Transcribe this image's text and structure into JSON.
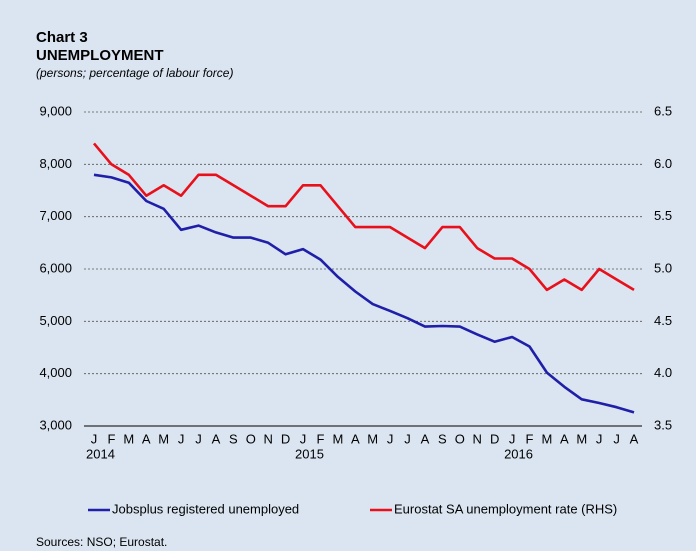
{
  "chart_data": {
    "type": "line",
    "title": "Chart 3",
    "subtitle": "UNEMPLOYMENT",
    "units_note": "(persons; percentage of labour force)",
    "source": "Sources: NSO; Eurostat.",
    "categories": [
      "J",
      "F",
      "M",
      "A",
      "M",
      "J",
      "J",
      "A",
      "S",
      "O",
      "N",
      "D",
      "J",
      "F",
      "M",
      "A",
      "M",
      "J",
      "J",
      "A",
      "S",
      "O",
      "N",
      "D",
      "J",
      "F",
      "M",
      "A",
      "M",
      "J",
      "J",
      "A"
    ],
    "years": [
      "2014",
      null,
      null,
      null,
      null,
      null,
      null,
      null,
      null,
      null,
      null,
      null,
      "2015",
      null,
      null,
      null,
      null,
      null,
      null,
      null,
      null,
      null,
      null,
      null,
      "2016",
      null,
      null,
      null,
      null,
      null,
      null,
      null
    ],
    "series": [
      {
        "name": "Jobsplus registered unemployed",
        "color": "#1f1fa8",
        "axis": "y",
        "values": [
          7800,
          7750,
          7650,
          7300,
          7150,
          6750,
          6830,
          6700,
          6600,
          6600,
          6500,
          6280,
          6380,
          6180,
          5850,
          5570,
          5330,
          5200,
          5060,
          4900,
          4910,
          4900,
          4750,
          4610,
          4700,
          4520,
          4020,
          3750,
          3510,
          3440,
          3360,
          3260
        ]
      },
      {
        "name": "Eurostat SA unemployment rate (RHS)",
        "color": "#e8101a",
        "axis": "y2",
        "values": [
          6.2,
          6.0,
          5.9,
          5.7,
          5.8,
          5.7,
          5.9,
          5.9,
          5.8,
          5.7,
          5.6,
          5.6,
          5.8,
          5.8,
          5.6,
          5.4,
          5.4,
          5.4,
          5.3,
          5.2,
          5.4,
          5.4,
          5.2,
          5.1,
          5.1,
          5.0,
          4.8,
          4.9,
          4.8,
          5.0,
          4.9,
          4.8
        ]
      }
    ],
    "ylim": [
      3000,
      9000
    ],
    "yticks": [
      {
        "value": 3000,
        "label": "3,000"
      },
      {
        "value": 4000,
        "label": "4,000"
      },
      {
        "value": 5000,
        "label": "5,000"
      },
      {
        "value": 6000,
        "label": "6,000"
      },
      {
        "value": 7000,
        "label": "7,000"
      },
      {
        "value": 8000,
        "label": "8,000"
      },
      {
        "value": 9000,
        "label": "9,000"
      }
    ],
    "y2lim": [
      3.5,
      6.5
    ],
    "y2ticks": [
      3.5,
      {
        "value": 4,
        "label": "4.0"
      },
      4.5,
      {
        "value": 5,
        "label": "5.0"
      },
      5.5,
      {
        "value": 6,
        "label": "6.0"
      },
      6.5
    ],
    "grid": true,
    "legend": "bottom"
  }
}
